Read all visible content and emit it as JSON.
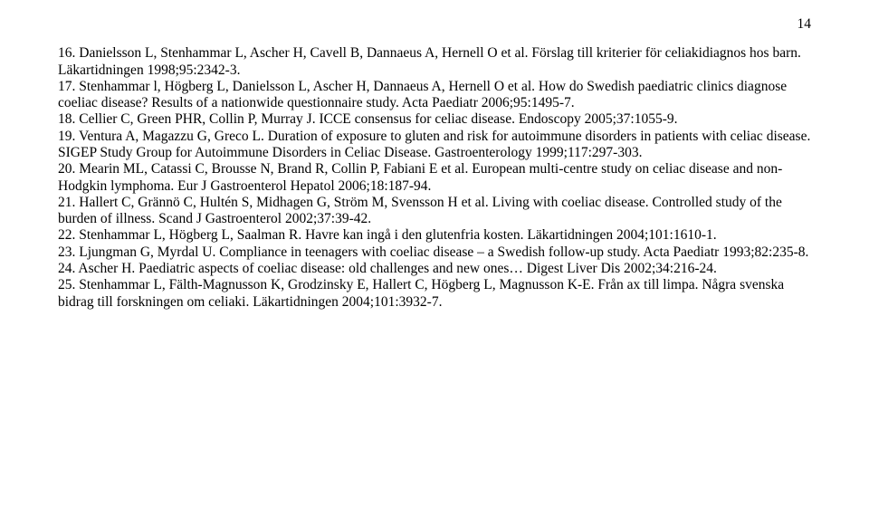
{
  "page_number": "14",
  "references": [
    "16. Danielsson L, Stenhammar L, Ascher H, Cavell B, Dannaeus A, Hernell O et al. Förslag till kriterier för celiakidiagnos hos barn. Läkartidningen 1998;95:2342-3.",
    "17. Stenhammar l, Högberg L, Danielsson L, Ascher H, Dannaeus A, Hernell O et al. How do Swedish paediatric clinics diagnose coeliac disease? Results of a nationwide questionnaire study. Acta Paediatr 2006;95:1495-7.",
    "18. Cellier C, Green PHR, Collin P, Murray J. ICCE consensus for celiac disease. Endoscopy 2005;37:1055-9.",
    "19. Ventura A, Magazzu G, Greco L. Duration of exposure to gluten and risk for autoimmune disorders in patients with celiac disease. SIGEP Study Group for Autoimmune Disorders in Celiac Disease. Gastroenterology 1999;117:297-303.",
    "20. Mearin ML, Catassi C, Brousse N, Brand R, Collin P, Fabiani E et al. European multi-centre study on celiac disease and non-Hodgkin lymphoma. Eur J Gastroenterol Hepatol 2006;18:187-94.",
    "21. Hallert C, Grännö C, Hultén S, Midhagen G, Ström M, Svensson H et al. Living with coeliac disease. Controlled study of the burden of illness. Scand J Gastroenterol 2002;37:39-42.",
    "22. Stenhammar L, Högberg L, Saalman R. Havre kan ingå i den glutenfria kosten. Läkartidningen 2004;101:1610-1.",
    "23. Ljungman G, Myrdal U. Compliance in teenagers with coeliac disease – a Swedish follow-up study. Acta Paediatr 1993;82:235-8.",
    "24. Ascher H. Paediatric aspects of coeliac disease: old challenges and new ones… Digest Liver Dis 2002;34:216-24.",
    "25. Stenhammar L, Fälth-Magnusson K, Grodzinsky E, Hallert C, Högberg L, Magnusson K-E. Från ax till limpa. Några svenska bidrag till forskningen om celiaki. Läkartidningen 2004;101:3932-7."
  ]
}
